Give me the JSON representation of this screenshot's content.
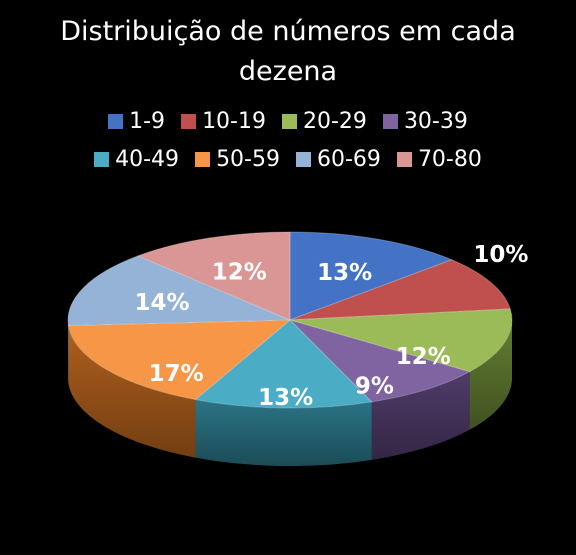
{
  "chart_data": {
    "type": "pie",
    "title_lines": [
      "Distribuição de números em cada",
      "dezena"
    ],
    "legend_placement": "top",
    "slices": [
      {
        "label": "1-9",
        "value": 13,
        "display": "13%",
        "color": "#4472C4",
        "dark": "#2b4c86"
      },
      {
        "label": "10-19",
        "value": 10,
        "display": "10%",
        "color": "#C0504D",
        "dark": "#7f2f2d"
      },
      {
        "label": "20-29",
        "value": 12,
        "display": "12%",
        "color": "#9BBB59",
        "dark": "#637d32"
      },
      {
        "label": "30-39",
        "value": 9,
        "display": "9%",
        "color": "#8064A2",
        "dark": "#4f3b69"
      },
      {
        "label": "40-49",
        "value": 13,
        "display": "13%",
        "color": "#4BACC6",
        "dark": "#2b7486"
      },
      {
        "label": "50-59",
        "value": 17,
        "display": "17%",
        "color": "#F79646",
        "dark": "#b05f1c"
      },
      {
        "label": "60-69",
        "value": 14,
        "display": "14%",
        "color": "#95B3D7",
        "dark": "#5a7aa0"
      },
      {
        "label": "70-80",
        "value": 12,
        "display": "12%",
        "color": "#DA9694",
        "dark": "#9a5d5b"
      }
    ]
  }
}
